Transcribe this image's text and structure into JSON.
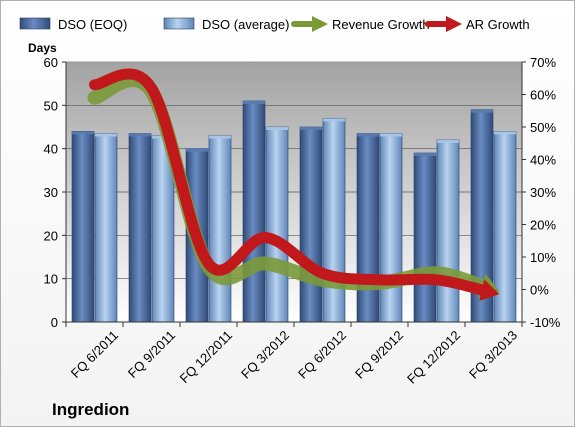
{
  "chart_data": {
    "type": "bar",
    "title": "Ingredion",
    "ylabel": "Days",
    "ylim": [
      0,
      60
    ],
    "y2lim": [
      -10,
      70
    ],
    "yticks": [
      "0",
      "10",
      "20",
      "30",
      "40",
      "50",
      "60"
    ],
    "y2ticks": [
      "-10%",
      "0%",
      "10%",
      "20%",
      "30%",
      "40%",
      "50%",
      "60%",
      "70%"
    ],
    "categories": [
      "FQ 6/2011",
      "FQ 9/2011",
      "FQ 12/2011",
      "FQ 3/2012",
      "FQ 6/2012",
      "FQ 9/2012",
      "FQ 12/2012",
      "FQ 3/2013"
    ],
    "series": [
      {
        "name": "DSO (EOQ)",
        "kind": "bar",
        "axis": "left",
        "color": "#4f6fa0",
        "values": [
          44,
          43.5,
          40,
          51,
          45,
          43.5,
          39,
          49
        ]
      },
      {
        "name": "DSO (average)",
        "kind": "bar",
        "axis": "left",
        "color": "#8fb3dc",
        "values": [
          43.5,
          43,
          43,
          45,
          47,
          43.5,
          42,
          44
        ]
      },
      {
        "name": "Revenue Growth",
        "kind": "line",
        "axis": "right",
        "unit": "%",
        "color": "#7a9a3a",
        "values": [
          59,
          61,
          7,
          8,
          3,
          2,
          5,
          0
        ]
      },
      {
        "name": "AR Growth",
        "kind": "line",
        "axis": "right",
        "unit": "%",
        "color": "#c0181b",
        "values": [
          63,
          62,
          8,
          16,
          5,
          3,
          3,
          -1
        ]
      }
    ],
    "legend_position": "top",
    "grid": true
  }
}
